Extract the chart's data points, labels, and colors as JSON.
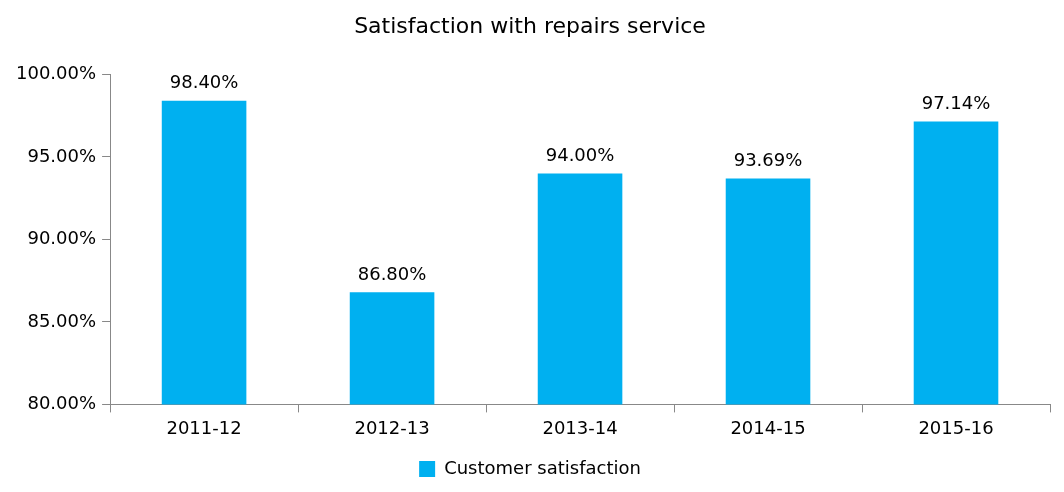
{
  "chart_data": {
    "type": "bar",
    "title": "Satisfaction with repairs service",
    "categories": [
      "2011-12",
      "2012-13",
      "2013-14",
      "2014-15",
      "2015-16"
    ],
    "series": [
      {
        "name": "Customer satisfaction",
        "color": "#00b0f0",
        "values": [
          98.4,
          86.8,
          94.0,
          93.69,
          97.14
        ],
        "value_labels": [
          "98.40%",
          "86.80%",
          "94.00%",
          "93.69%",
          "97.14%"
        ]
      }
    ],
    "ylim": [
      80,
      100
    ],
    "yticks": [
      {
        "value": 80,
        "label": "80.00%"
      },
      {
        "value": 85,
        "label": "85.00%"
      },
      {
        "value": 90,
        "label": "90.00%"
      },
      {
        "value": 95,
        "label": "95.00%"
      },
      {
        "value": 100,
        "label": "100.00%"
      }
    ],
    "grid": false,
    "legend": "bottom"
  }
}
